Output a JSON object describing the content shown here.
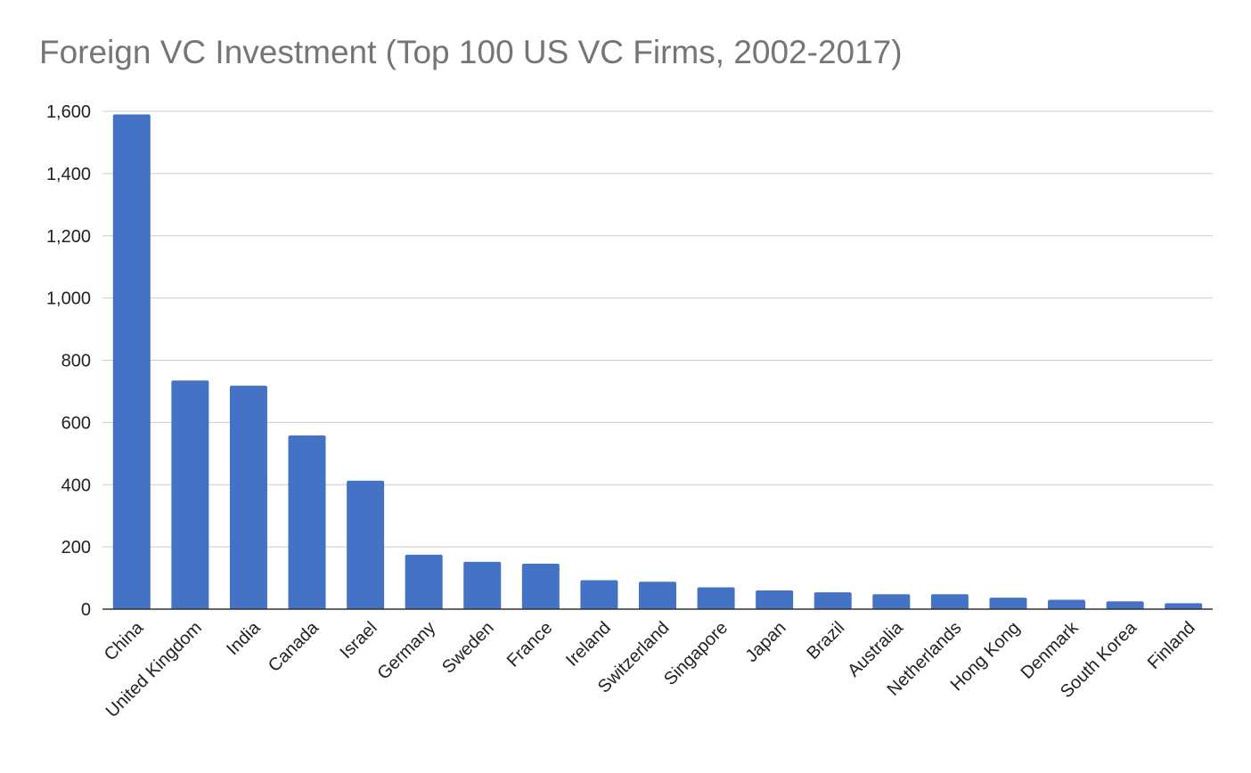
{
  "chart_data": {
    "type": "bar",
    "title": "Foreign VC Investment (Top 100 US VC Firms, 2002-2017)",
    "xlabel": "",
    "ylabel": "",
    "categories": [
      "China",
      "United Kingdom",
      "India",
      "Canada",
      "Israel",
      "Germany",
      "Sweden",
      "France",
      "Ireland",
      "Switzerland",
      "Singapore",
      "Japan",
      "Brazil",
      "Australia",
      "Netherlands",
      "Hong Kong",
      "Denmark",
      "South Korea",
      "Finland"
    ],
    "values": [
      1590,
      735,
      718,
      558,
      413,
      175,
      152,
      146,
      93,
      88,
      70,
      60,
      54,
      48,
      48,
      37,
      30,
      25,
      19
    ],
    "ylim": [
      0,
      1600
    ],
    "yticks": [
      0,
      200,
      400,
      600,
      800,
      1000,
      1200,
      1400,
      1600
    ],
    "ytick_labels": [
      "0",
      "200",
      "400",
      "600",
      "800",
      "1,000",
      "1,200",
      "1,400",
      "1,600"
    ],
    "grid": true,
    "legend": "none",
    "colors": {
      "bar": "#4472c4",
      "grid": "#cccccc",
      "axis": "#333333",
      "title": "#757575",
      "tick_text": "#222222"
    }
  }
}
